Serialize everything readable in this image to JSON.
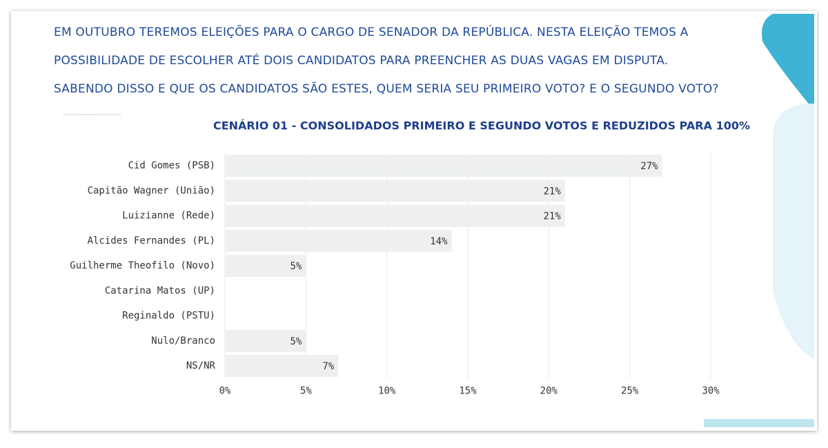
{
  "chart_data": {
    "type": "hbar",
    "annotations": [
      "EM OUTUBRO TEREMOS ELEIÇÕES PARA O CARGO DE SENADOR DA REPÚBLICA. NESTA ELEIÇÃO TEMOS A",
      "POSSIBILIDADE DE ESCOLHER ATÉ DOIS CANDIDATOS PARA PREENCHER AS DUAS VAGAS EM DISPUTA.",
      "SABENDO DISSO E QUE OS CANDIDATOS SÃO ESTES, QUEM SERIA SEU PRIMEIRO VOTO? E O SEGUNDO VOTO?"
    ],
    "title": "CENÁRIO 01 - CONSOLIDADOS PRIMEIRO E SEGUNDO VOTOS E REDUZIDOS PARA 100%",
    "categories": [
      "Cid Gomes (PSB)",
      "Capitão Wagner (União)",
      "Luizianne (Rede)",
      "Alcides Fernandes (PL)",
      "Guilherme Theofilo (Novo)",
      "Catarina Matos (UP)",
      "Reginaldo (PSTU)",
      "Nulo/Branco",
      "NS/NR"
    ],
    "values": [
      27,
      21,
      21,
      14,
      5,
      0,
      0,
      5,
      7
    ],
    "value_labels": [
      "27%",
      "21%",
      "21%",
      "14%",
      "5%",
      null,
      null,
      "5%",
      "7%"
    ],
    "color": "#eef0f0",
    "xlim": [
      0,
      30
    ],
    "xticks": [
      {
        "value": 0,
        "label": "0%"
      },
      {
        "value": 5,
        "label": "5%"
      },
      {
        "value": 10,
        "label": "10%"
      },
      {
        "value": 15,
        "label": "15%"
      },
      {
        "value": 20,
        "label": "20%"
      },
      {
        "value": 25,
        "label": "25%"
      },
      {
        "value": 30,
        "label": "30%"
      }
    ],
    "grid": true
  }
}
